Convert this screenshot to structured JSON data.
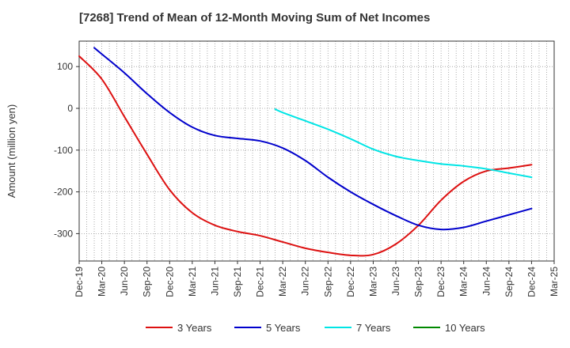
{
  "chart_data": {
    "type": "line",
    "title": "[7268]  Trend of Mean of 12-Month Moving Sum of Net Incomes",
    "xlabel": "",
    "ylabel": "Amount (million yen)",
    "ylim": [
      -365,
      160
    ],
    "yticks": [
      100,
      0,
      -100,
      -200,
      -300
    ],
    "x_tick_labels": [
      "Dec-19",
      "Mar-20",
      "Jun-20",
      "Sep-20",
      "Dec-20",
      "Mar-21",
      "Jun-21",
      "Sep-21",
      "Dec-21",
      "Mar-22",
      "Jun-22",
      "Sep-22",
      "Dec-22",
      "Mar-23",
      "Jun-23",
      "Sep-23",
      "Dec-23",
      "Mar-24",
      "Jun-24",
      "Sep-24",
      "Dec-24",
      "Mar-25"
    ],
    "grid": true,
    "legend_position": "bottom",
    "series": [
      {
        "name": "3 Years",
        "color": "#dd1111",
        "x": [
          "Dec-19",
          "Mar-20",
          "Jun-20",
          "Sep-20",
          "Dec-20",
          "Mar-21",
          "Jun-21",
          "Sep-21",
          "Dec-21",
          "Mar-22",
          "Jun-22",
          "Sep-22",
          "Dec-22",
          "Mar-23",
          "Jun-23",
          "Sep-23",
          "Dec-23",
          "Mar-24",
          "Jun-24",
          "Sep-24",
          "Dec-24"
        ],
        "y": [
          125,
          70,
          -20,
          -110,
          -195,
          -250,
          -280,
          -295,
          -305,
          -320,
          -335,
          -345,
          -352,
          -350,
          -325,
          -280,
          -220,
          -175,
          -150,
          -143,
          -135
        ]
      },
      {
        "name": "5 Years",
        "color": "#0000cc",
        "x": [
          "Feb-20",
          "Mar-20",
          "Jun-20",
          "Sep-20",
          "Dec-20",
          "Mar-21",
          "Jun-21",
          "Sep-21",
          "Dec-21",
          "Mar-22",
          "Jun-22",
          "Sep-22",
          "Dec-22",
          "Mar-23",
          "Jun-23",
          "Sep-23",
          "Dec-23",
          "Mar-24",
          "Jun-24",
          "Sep-24",
          "Dec-24"
        ],
        "y": [
          145,
          130,
          85,
          35,
          -10,
          -45,
          -65,
          -72,
          -78,
          -95,
          -125,
          -165,
          -200,
          -230,
          -257,
          -280,
          -290,
          -285,
          -270,
          -255,
          -240
        ]
      },
      {
        "name": "7 Years",
        "color": "#00e5e5",
        "x": [
          "Feb-22",
          "Mar-22",
          "Jun-22",
          "Sep-22",
          "Dec-22",
          "Mar-23",
          "Jun-23",
          "Sep-23",
          "Dec-23",
          "Mar-24",
          "Jun-24",
          "Sep-24",
          "Dec-24"
        ],
        "y": [
          -2,
          -10,
          -30,
          -50,
          -73,
          -98,
          -115,
          -125,
          -133,
          -138,
          -145,
          -155,
          -165
        ]
      },
      {
        "name": "10 Years",
        "color": "#008800",
        "x": [],
        "y": []
      }
    ]
  }
}
